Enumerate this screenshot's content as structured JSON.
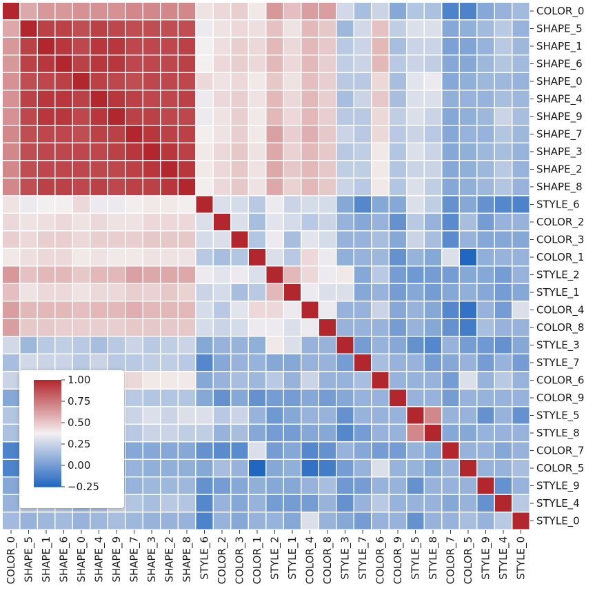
{
  "chart_data": {
    "type": "heatmap",
    "title": "",
    "xlabel": "",
    "ylabel": "",
    "labels": [
      "COLOR_0",
      "SHAPE_5",
      "SHAPE_1",
      "SHAPE_6",
      "SHAPE_0",
      "SHAPE_4",
      "SHAPE_9",
      "SHAPE_7",
      "SHAPE_3",
      "SHAPE_2",
      "SHAPE_8",
      "STYLE_6",
      "COLOR_2",
      "COLOR_3",
      "COLOR_1",
      "STYLE_2",
      "STYLE_1",
      "COLOR_4",
      "COLOR_8",
      "STYLE_3",
      "STYLE_7",
      "COLOR_6",
      "COLOR_9",
      "STYLE_5",
      "STYLE_8",
      "COLOR_7",
      "COLOR_5",
      "STYLE_9",
      "STYLE_4",
      "STYLE_0"
    ],
    "x_tick_labels": [
      "COLOR_0",
      "SHAPE_5",
      "SHAPE_1",
      "SHAPE_6",
      "SHAPE_0",
      "SHAPE_4",
      "SHAPE_9",
      "SHAPE_7",
      "SHAPE_3",
      "SHAPE_2",
      "SHAPE_8",
      "STYLE_6",
      "COLOR_2",
      "COLOR_3",
      "COLOR_1",
      "STYLE_2",
      "STYLE_1",
      "COLOR_4",
      "COLOR_8",
      "STYLE_3",
      "STYLE_7",
      "COLOR_6",
      "COLOR_9",
      "STYLE_5",
      "STYLE_8",
      "COLOR_7",
      "COLOR_5",
      "STYLE_9",
      "STYLE_4",
      "STYLE_0"
    ],
    "y_tick_labels": [
      "COLOR_0",
      "SHAPE_5",
      "SHAPE_1",
      "SHAPE_6",
      "SHAPE_0",
      "SHAPE_4",
      "SHAPE_9",
      "SHAPE_7",
      "SHAPE_3",
      "SHAPE_2",
      "SHAPE_8",
      "STYLE_6",
      "COLOR_2",
      "COLOR_3",
      "COLOR_1",
      "STYLE_2",
      "STYLE_1",
      "COLOR_4",
      "COLOR_8",
      "STYLE_3",
      "STYLE_7",
      "COLOR_6",
      "COLOR_9",
      "STYLE_5",
      "STYLE_8",
      "COLOR_7",
      "COLOR_5",
      "STYLE_9",
      "STYLE_4",
      "STYLE_0"
    ],
    "values": [
      [
        1.0,
        0.6,
        0.65,
        0.65,
        0.67,
        0.67,
        0.67,
        0.7,
        0.7,
        0.7,
        0.7,
        0.42,
        0.45,
        0.48,
        0.4,
        0.65,
        0.53,
        0.63,
        0.63,
        0.27,
        0.15,
        0.25,
        0.05,
        0.18,
        0.16,
        -0.12,
        -0.12,
        0.05,
        0.1,
        0.13
      ],
      [
        0.6,
        1.0,
        0.92,
        0.92,
        0.88,
        0.92,
        0.9,
        0.88,
        0.88,
        0.88,
        0.88,
        0.35,
        0.42,
        0.45,
        0.43,
        0.52,
        0.42,
        0.55,
        0.5,
        0.12,
        0.27,
        0.52,
        0.22,
        0.3,
        0.3,
        0.05,
        0.08,
        0.13,
        0.2,
        0.1
      ],
      [
        0.65,
        0.92,
        1.0,
        0.95,
        0.9,
        0.95,
        0.95,
        0.9,
        0.9,
        0.9,
        0.92,
        0.37,
        0.43,
        0.48,
        0.45,
        0.55,
        0.45,
        0.55,
        0.5,
        0.2,
        0.25,
        0.55,
        0.15,
        0.25,
        0.25,
        0.02,
        0.03,
        0.1,
        0.2,
        0.12
      ],
      [
        0.65,
        0.92,
        0.95,
        1.0,
        0.92,
        0.95,
        0.95,
        0.9,
        0.9,
        0.9,
        0.92,
        0.37,
        0.45,
        0.48,
        0.45,
        0.55,
        0.45,
        0.55,
        0.48,
        0.22,
        0.25,
        0.55,
        0.2,
        0.25,
        0.22,
        0.05,
        0.05,
        0.12,
        0.18,
        0.13
      ],
      [
        0.67,
        0.88,
        0.9,
        0.92,
        1.0,
        0.92,
        0.9,
        0.88,
        0.9,
        0.9,
        0.9,
        0.45,
        0.42,
        0.45,
        0.4,
        0.5,
        0.42,
        0.53,
        0.48,
        0.2,
        0.2,
        0.45,
        0.15,
        0.32,
        0.35,
        0.05,
        0.08,
        0.12,
        0.12,
        0.1
      ],
      [
        0.67,
        0.92,
        0.95,
        0.95,
        0.92,
        1.0,
        0.95,
        0.92,
        0.9,
        0.9,
        0.92,
        0.35,
        0.45,
        0.48,
        0.42,
        0.55,
        0.45,
        0.55,
        0.48,
        0.15,
        0.25,
        0.5,
        0.15,
        0.3,
        0.3,
        0.08,
        0.1,
        0.1,
        0.15,
        0.12
      ],
      [
        0.67,
        0.9,
        0.95,
        0.95,
        0.9,
        0.95,
        1.0,
        0.92,
        0.92,
        0.9,
        0.9,
        0.35,
        0.42,
        0.48,
        0.4,
        0.55,
        0.45,
        0.55,
        0.48,
        0.2,
        0.2,
        0.45,
        0.22,
        0.3,
        0.25,
        0.05,
        0.08,
        0.12,
        0.25,
        0.15
      ],
      [
        0.7,
        0.88,
        0.9,
        0.9,
        0.88,
        0.92,
        0.92,
        1.0,
        0.95,
        0.92,
        0.92,
        0.38,
        0.42,
        0.48,
        0.4,
        0.62,
        0.48,
        0.58,
        0.5,
        0.25,
        0.2,
        0.45,
        0.2,
        0.25,
        0.2,
        0.05,
        0.1,
        0.1,
        0.18,
        0.12
      ],
      [
        0.7,
        0.88,
        0.9,
        0.9,
        0.9,
        0.9,
        0.92,
        0.95,
        1.0,
        0.95,
        0.92,
        0.4,
        0.45,
        0.5,
        0.42,
        0.6,
        0.47,
        0.55,
        0.5,
        0.2,
        0.22,
        0.4,
        0.18,
        0.3,
        0.25,
        0.05,
        0.08,
        0.12,
        0.15,
        0.1
      ],
      [
        0.7,
        0.88,
        0.9,
        0.9,
        0.9,
        0.9,
        0.9,
        0.92,
        0.95,
        1.0,
        0.95,
        0.4,
        0.45,
        0.5,
        0.42,
        0.6,
        0.5,
        0.55,
        0.5,
        0.22,
        0.22,
        0.4,
        0.18,
        0.25,
        0.25,
        0.05,
        0.08,
        0.12,
        0.2,
        0.1
      ],
      [
        0.7,
        0.88,
        0.92,
        0.92,
        0.9,
        0.92,
        0.9,
        0.92,
        0.92,
        0.95,
        1.0,
        0.38,
        0.45,
        0.5,
        0.42,
        0.6,
        0.47,
        0.55,
        0.5,
        0.25,
        0.2,
        0.4,
        0.18,
        0.3,
        0.22,
        0.05,
        0.08,
        0.12,
        0.18,
        0.1
      ],
      [
        0.42,
        0.35,
        0.37,
        0.37,
        0.45,
        0.35,
        0.35,
        0.38,
        0.4,
        0.4,
        0.38,
        1.0,
        0.3,
        0.28,
        0.2,
        0.35,
        0.25,
        0.28,
        0.28,
        0.05,
        -0.1,
        0.05,
        0.05,
        0.3,
        0.22,
        -0.05,
        0.05,
        -0.05,
        -0.1,
        -0.12
      ],
      [
        0.45,
        0.42,
        0.43,
        0.45,
        0.42,
        0.45,
        0.42,
        0.42,
        0.45,
        0.45,
        0.45,
        0.3,
        1.0,
        0.3,
        0.15,
        0.32,
        0.28,
        0.2,
        0.25,
        0.1,
        0.05,
        0.1,
        -0.05,
        0.2,
        0.1,
        -0.08,
        0.15,
        0.0,
        0.1,
        0.1
      ],
      [
        0.48,
        0.45,
        0.48,
        0.48,
        0.45,
        0.48,
        0.48,
        0.48,
        0.5,
        0.5,
        0.5,
        0.28,
        0.3,
        1.0,
        0.18,
        0.35,
        0.15,
        0.32,
        0.28,
        0.1,
        0.1,
        0.15,
        0.05,
        0.25,
        0.15,
        -0.08,
        0.1,
        0.05,
        0.05,
        0.05
      ],
      [
        0.4,
        0.43,
        0.45,
        0.45,
        0.4,
        0.42,
        0.4,
        0.4,
        0.42,
        0.42,
        0.42,
        0.2,
        0.15,
        0.18,
        1.0,
        0.3,
        0.2,
        0.45,
        0.35,
        0.08,
        0.1,
        0.12,
        -0.05,
        0.1,
        0.05,
        0.3,
        -0.25,
        0.08,
        0.1,
        0.1
      ],
      [
        0.65,
        0.52,
        0.55,
        0.55,
        0.5,
        0.55,
        0.55,
        0.62,
        0.6,
        0.6,
        0.6,
        0.35,
        0.32,
        0.35,
        0.3,
        1.0,
        0.55,
        0.45,
        0.35,
        0.4,
        0.05,
        0.2,
        0.0,
        -0.02,
        0.0,
        0.0,
        0.05,
        0.05,
        0.0,
        0.1
      ],
      [
        0.53,
        0.42,
        0.45,
        0.45,
        0.42,
        0.45,
        0.45,
        0.48,
        0.47,
        0.5,
        0.47,
        0.25,
        0.28,
        0.15,
        0.2,
        0.55,
        1.0,
        0.35,
        0.3,
        0.3,
        0.05,
        0.1,
        0.0,
        0.05,
        0.0,
        0.05,
        0.08,
        0.05,
        0.0,
        0.05
      ],
      [
        0.63,
        0.55,
        0.55,
        0.55,
        0.53,
        0.55,
        0.55,
        0.58,
        0.55,
        0.55,
        0.55,
        0.28,
        0.2,
        0.32,
        0.45,
        0.45,
        0.35,
        1.0,
        0.35,
        0.1,
        0.1,
        0.25,
        0.05,
        0.1,
        0.05,
        -0.1,
        -0.2,
        0.1,
        0.0,
        0.3
      ],
      [
        0.63,
        0.5,
        0.5,
        0.48,
        0.48,
        0.48,
        0.48,
        0.5,
        0.5,
        0.5,
        0.5,
        0.28,
        0.25,
        0.28,
        0.35,
        0.35,
        0.3,
        0.35,
        1.0,
        0.1,
        0.1,
        0.1,
        0.0,
        0.1,
        0.05,
        -0.05,
        -0.15,
        0.15,
        0.1,
        0.1
      ],
      [
        0.27,
        0.12,
        0.2,
        0.22,
        0.2,
        0.15,
        0.2,
        0.25,
        0.2,
        0.22,
        0.25,
        0.05,
        0.1,
        0.1,
        0.08,
        0.4,
        0.3,
        0.1,
        0.1,
        1.0,
        0.0,
        0.1,
        0.05,
        -0.05,
        -0.1,
        0.1,
        0.0,
        -0.02,
        -0.05,
        0.05
      ],
      [
        0.15,
        0.27,
        0.25,
        0.25,
        0.2,
        0.25,
        0.2,
        0.2,
        0.22,
        0.22,
        0.2,
        -0.1,
        0.05,
        0.1,
        0.1,
        0.05,
        0.05,
        0.1,
        0.1,
        0.0,
        1.0,
        0.15,
        0.1,
        0.1,
        0.0,
        0.05,
        0.1,
        0.0,
        0.1,
        0.0
      ],
      [
        0.25,
        0.52,
        0.55,
        0.55,
        0.45,
        0.5,
        0.45,
        0.45,
        0.4,
        0.4,
        0.4,
        0.05,
        0.1,
        0.15,
        0.12,
        0.2,
        0.1,
        0.25,
        0.1,
        0.1,
        0.15,
        1.0,
        0.1,
        0.1,
        0.1,
        0.0,
        0.3,
        0.1,
        0.2,
        0.1
      ],
      [
        0.05,
        0.22,
        0.15,
        0.2,
        0.15,
        0.15,
        0.22,
        0.2,
        0.18,
        0.18,
        0.18,
        0.05,
        -0.05,
        0.05,
        -0.05,
        0.0,
        0.0,
        0.05,
        0.0,
        0.05,
        0.1,
        0.1,
        1.0,
        0.1,
        0.1,
        0.0,
        0.1,
        0.1,
        0.1,
        0.1
      ],
      [
        0.18,
        0.3,
        0.25,
        0.25,
        0.32,
        0.3,
        0.3,
        0.25,
        0.3,
        0.25,
        0.3,
        0.3,
        0.2,
        0.25,
        0.1,
        -0.02,
        0.05,
        0.1,
        0.1,
        -0.05,
        0.1,
        0.1,
        0.1,
        1.0,
        0.7,
        0.1,
        0.1,
        -0.05,
        0.1,
        -0.05
      ],
      [
        0.16,
        0.3,
        0.25,
        0.22,
        0.35,
        0.3,
        0.25,
        0.2,
        0.25,
        0.25,
        0.22,
        0.22,
        0.1,
        0.15,
        0.05,
        0.0,
        0.0,
        0.05,
        0.05,
        -0.1,
        0.0,
        0.1,
        0.1,
        0.7,
        1.0,
        0.05,
        0.05,
        0.1,
        0.1,
        0.1
      ],
      [
        -0.12,
        0.05,
        0.02,
        0.05,
        0.05,
        0.08,
        0.05,
        0.05,
        0.05,
        0.05,
        0.05,
        -0.05,
        -0.08,
        -0.08,
        0.3,
        0.0,
        0.05,
        -0.1,
        -0.05,
        0.1,
        0.05,
        0.0,
        0.0,
        0.1,
        0.05,
        1.0,
        0.1,
        0.1,
        0.05,
        0.1
      ],
      [
        -0.12,
        0.08,
        0.03,
        0.05,
        0.08,
        0.1,
        0.08,
        0.1,
        0.08,
        0.08,
        0.08,
        0.05,
        0.15,
        0.1,
        -0.25,
        0.05,
        0.08,
        -0.2,
        -0.15,
        0.0,
        0.1,
        0.3,
        0.1,
        0.1,
        0.05,
        0.1,
        1.0,
        0.1,
        0.1,
        0.15
      ],
      [
        0.05,
        0.13,
        0.1,
        0.12,
        0.12,
        0.1,
        0.12,
        0.1,
        0.12,
        0.12,
        0.12,
        -0.05,
        0.0,
        0.05,
        0.08,
        0.05,
        0.05,
        0.1,
        0.15,
        -0.02,
        0.0,
        0.1,
        0.1,
        -0.05,
        0.1,
        0.1,
        0.1,
        1.0,
        -0.05,
        0.1
      ],
      [
        0.1,
        0.2,
        0.2,
        0.18,
        0.12,
        0.15,
        0.25,
        0.18,
        0.15,
        0.2,
        0.18,
        -0.1,
        0.1,
        0.05,
        0.1,
        0.0,
        0.0,
        0.0,
        0.1,
        -0.05,
        0.1,
        0.2,
        0.1,
        0.1,
        0.1,
        0.05,
        0.1,
        -0.05,
        1.0,
        0.2
      ],
      [
        0.13,
        0.1,
        0.12,
        0.13,
        0.1,
        0.12,
        0.15,
        0.12,
        0.1,
        0.1,
        0.1,
        -0.12,
        0.1,
        0.05,
        0.1,
        0.1,
        0.05,
        0.3,
        0.1,
        0.05,
        0.0,
        0.1,
        0.1,
        -0.05,
        0.1,
        0.1,
        0.15,
        0.1,
        0.2,
        1.0
      ]
    ],
    "colorbar": {
      "min": -0.25,
      "max": 1.0,
      "ticks": [
        1.0,
        0.75,
        0.5,
        0.25,
        0.0,
        -0.25
      ],
      "tick_labels": [
        "1.00",
        "0.75",
        "0.50",
        "0.25",
        "0.00",
        "−0.25"
      ],
      "placement": "bottom-left inside plot"
    },
    "colormap": {
      "low": "#2166c0",
      "mid": "#f4f0f0",
      "high": "#b2272d"
    },
    "grid": false
  }
}
